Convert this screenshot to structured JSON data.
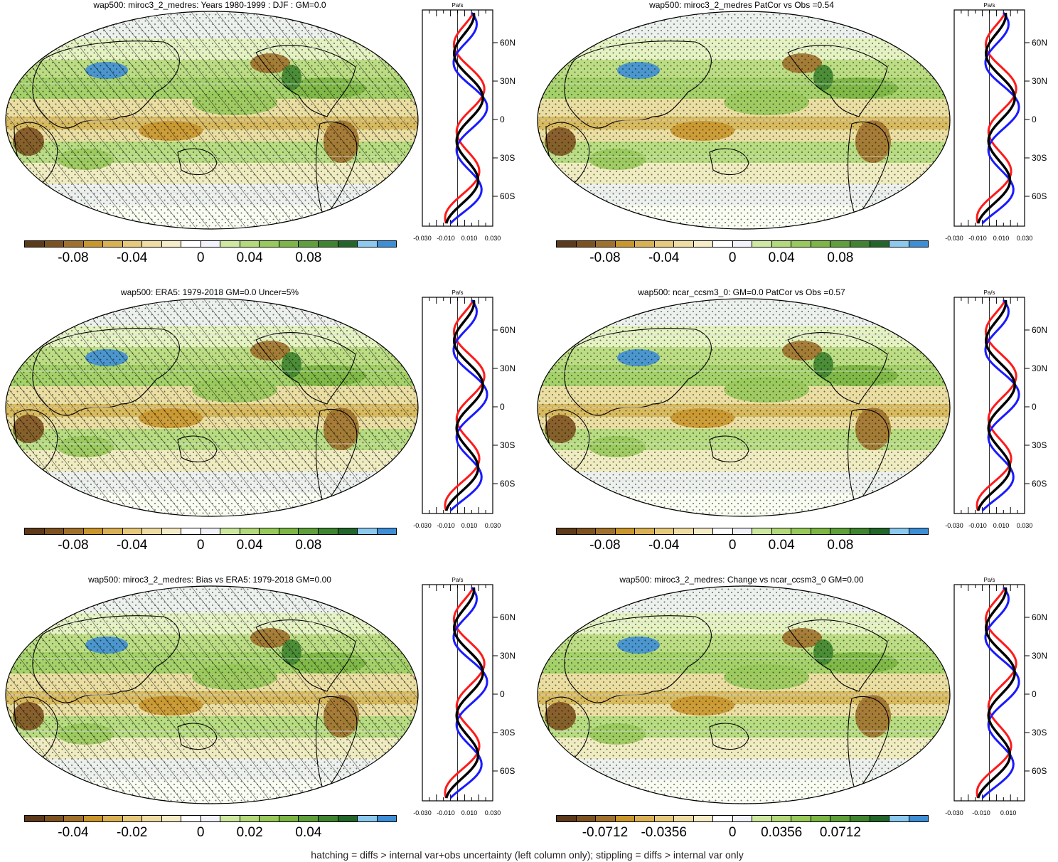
{
  "footer": "hatching = diffs > internal var+obs uncertainty (left column only); stippling = diffs > internal var only",
  "colors": [
    "#5c3a1a",
    "#7e5220",
    "#a0712c",
    "#c9962c",
    "#d9b154",
    "#e7c97c",
    "#efdca2",
    "#f6ecc7",
    "#ffffff",
    "#f2f2fb",
    "#cde8a0",
    "#b3d97b",
    "#98c95b",
    "#7cb644",
    "#5fa03a",
    "#3f8530",
    "#23662a",
    "#8cc9ee",
    "#3e8ed6"
  ],
  "profile_axis": {
    "units": "Pa/s",
    "lat_labels": [
      "60N",
      "30N",
      "0",
      "30S",
      "60S"
    ]
  },
  "panels": [
    {
      "id": "p1",
      "title": "wap500: miroc3_2_medres: Years 1980-1999 : DJF : GM=0.0",
      "cbar_labels": [
        "-0.08",
        "-0.04",
        "0",
        "0.04",
        "0.08"
      ],
      "x_labels": [
        "-0.030",
        "-0.010",
        "0.010",
        "0.030"
      ],
      "hatch": true
    },
    {
      "id": "p2",
      "title": "wap500: miroc3_2_medres PatCor vs Obs =0.54",
      "cbar_labels": [
        "-0.08",
        "-0.04",
        "0",
        "0.04",
        "0.08"
      ],
      "x_labels": [
        "-0.030",
        "-0.010",
        "0.010",
        "0.030"
      ],
      "hatch": false
    },
    {
      "id": "p3",
      "title": "wap500: ERA5: 1979-2018 GM=0.0 Uncer=5%",
      "cbar_labels": [
        "-0.08",
        "-0.04",
        "0",
        "0.04",
        "0.08"
      ],
      "x_labels": [
        "-0.030",
        "-0.010",
        "0.010",
        "0.030"
      ],
      "hatch": true
    },
    {
      "id": "p4",
      "title": "wap500: ncar_ccsm3_0: GM=0.0 PatCor vs Obs =0.57",
      "cbar_labels": [
        "-0.08",
        "-0.04",
        "0",
        "0.04",
        "0.08"
      ],
      "x_labels": [
        "-0.030",
        "-0.010",
        "0.010",
        "0.030"
      ],
      "hatch": false
    },
    {
      "id": "p5",
      "title": "wap500: miroc3_2_medres: Bias vs ERA5: 1979-2018 GM=0.00",
      "cbar_labels": [
        "-0.04",
        "-0.02",
        "0",
        "0.02",
        "0.04"
      ],
      "x_labels": [
        "-0.030",
        "-0.010",
        "0.010",
        "0.030"
      ],
      "hatch": true
    },
    {
      "id": "p6",
      "title": "wap500: miroc3_2_medres: Change vs ncar_ccsm3_0 GM=0.00",
      "cbar_labels": [
        "-0.0712",
        "-0.0356",
        "0",
        "0.0356",
        "0.0712"
      ],
      "x_labels": [
        "-0.030",
        "-0.010",
        "0.010"
      ],
      "hatch": false
    }
  ]
}
